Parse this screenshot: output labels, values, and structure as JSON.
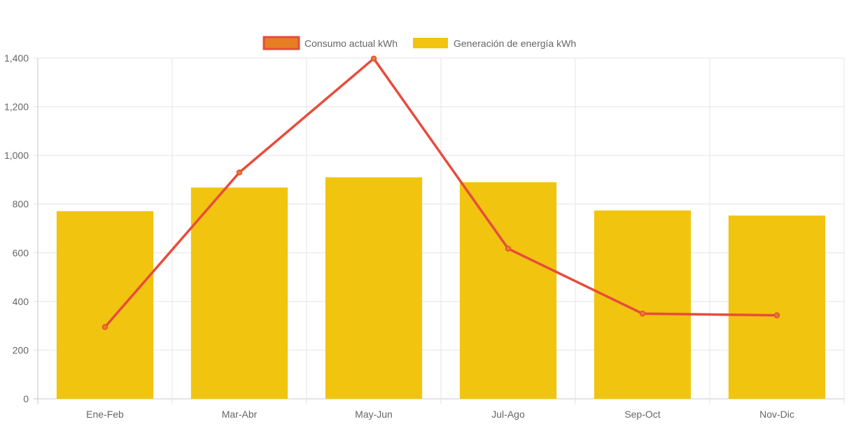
{
  "chart_data": {
    "type": "bar",
    "categories": [
      "Ene-Feb",
      "Mar-Abr",
      "May-Jun",
      "Jul-Ago",
      "Sep-Oct",
      "Nov-Dic"
    ],
    "series": [
      {
        "name": "Consumo actual kWh",
        "type": "line",
        "values": [
          295,
          930,
          1398,
          617,
          350,
          343
        ],
        "line_color": "#e74c3c",
        "point_color": "#e67e22"
      },
      {
        "name": "Generación de energía kWh",
        "type": "bar",
        "values": [
          771,
          868,
          910,
          890,
          774,
          753
        ],
        "color": "#f1c40f"
      }
    ],
    "ylim": [
      0,
      1400
    ],
    "yticks": [
      "0",
      "200",
      "400",
      "600",
      "800",
      "1,000",
      "1,200",
      "1,400"
    ],
    "ytick_values": [
      0,
      200,
      400,
      600,
      800,
      1000,
      1200,
      1400
    ],
    "grid": true,
    "legend": "top-center"
  }
}
